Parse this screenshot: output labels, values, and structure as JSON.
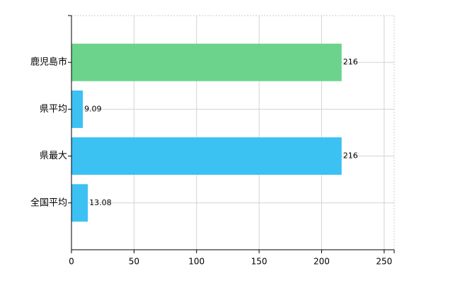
{
  "chart_data": {
    "type": "hbar",
    "categories": [
      "鹿児島市",
      "県平均",
      "県最大",
      "全国平均"
    ],
    "values": [
      216,
      9.09,
      216,
      13.08
    ],
    "colors": [
      "#6cd38c",
      "#3cc1f3",
      "#3cc1f3",
      "#3cc1f3"
    ],
    "xlim": [
      0,
      258
    ],
    "xticks": [
      0,
      50,
      100,
      150,
      200,
      250
    ],
    "grid": true
  }
}
